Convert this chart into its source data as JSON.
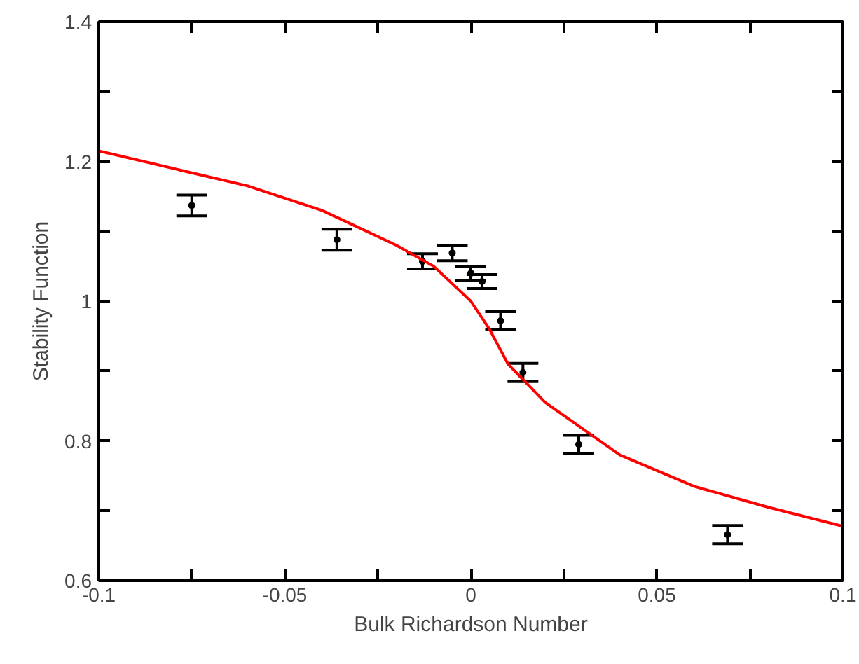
{
  "chart_data": {
    "type": "scatter",
    "xlabel": "Bulk Richardson Number",
    "ylabel": "Stability Function",
    "xlim": [
      -0.1,
      0.1
    ],
    "ylim": [
      0.6,
      1.4
    ],
    "xticks": [
      {
        "value": -0.1,
        "label": "-0.1"
      },
      {
        "value": -0.075,
        "label": null
      },
      {
        "value": -0.05,
        "label": "-0.05"
      },
      {
        "value": -0.025,
        "label": null
      },
      {
        "value": 0,
        "label": "0"
      },
      {
        "value": 0.025,
        "label": null
      },
      {
        "value": 0.05,
        "label": "0.05"
      },
      {
        "value": 0.075,
        "label": null
      },
      {
        "value": 0.1,
        "label": "0.1"
      }
    ],
    "yticks": [
      {
        "value": 0.6,
        "label": "0.6"
      },
      {
        "value": 0.7,
        "label": null
      },
      {
        "value": 0.8,
        "label": "0.8"
      },
      {
        "value": 0.9,
        "label": null
      },
      {
        "value": 1.0,
        "label": "1"
      },
      {
        "value": 1.1,
        "label": null
      },
      {
        "value": 1.2,
        "label": "1.2"
      },
      {
        "value": 1.3,
        "label": null
      },
      {
        "value": 1.4,
        "label": "1.4"
      }
    ],
    "grid": false,
    "series": [
      {
        "marker": "circle",
        "color": "#000000",
        "x": [
          -0.075,
          -0.036,
          -0.013,
          -0.005,
          0.0,
          0.003,
          0.008,
          0.014,
          0.029,
          0.069
        ],
        "values": [
          1.137,
          1.088,
          1.057,
          1.069,
          1.04,
          1.028,
          0.972,
          0.898,
          0.795,
          0.666
        ],
        "errors": [
          0.015,
          0.015,
          0.011,
          0.011,
          0.01,
          0.01,
          0.013,
          0.013,
          0.013,
          0.013
        ]
      },
      {
        "type": "line",
        "marker": "none",
        "color": "#ff0000",
        "x": [
          -0.1,
          -0.06,
          -0.04,
          -0.02,
          -0.01,
          0.0,
          0.005,
          0.01,
          0.02,
          0.04,
          0.06,
          0.08,
          0.1
        ],
        "values": [
          1.215,
          1.165,
          1.13,
          1.08,
          1.05,
          1.0,
          0.96,
          0.91,
          0.855,
          0.78,
          0.735,
          0.705,
          0.678
        ]
      }
    ]
  }
}
